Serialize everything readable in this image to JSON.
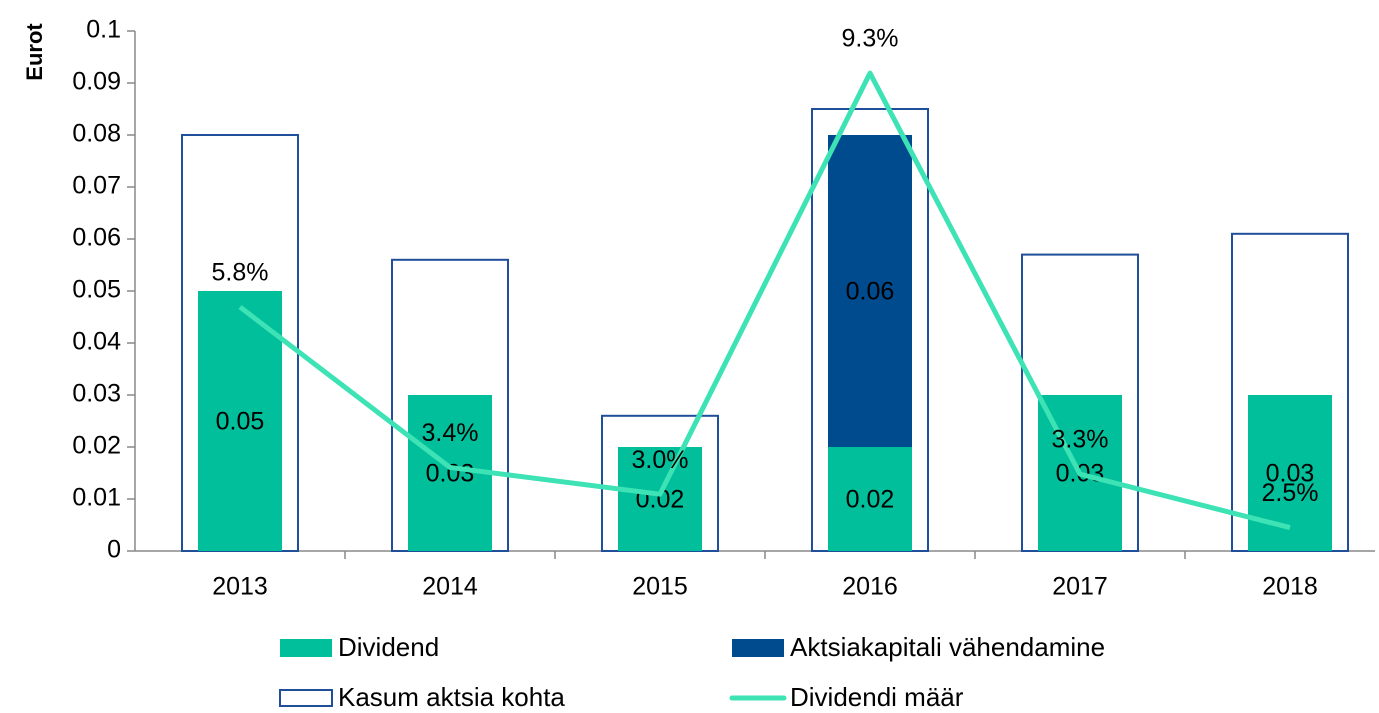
{
  "chart_data": {
    "type": "bar",
    "y_axis_label": "Eurot",
    "categories": [
      "2013",
      "2014",
      "2015",
      "2016",
      "2017",
      "2018"
    ],
    "series": [
      {
        "name": "Kasum aktsia kohta",
        "kind": "outline",
        "color": "#1f4e9a",
        "values": [
          0.08,
          0.056,
          0.026,
          0.085,
          0.057,
          0.061
        ]
      },
      {
        "name": "Dividend",
        "kind": "stacked",
        "color": "#00bf9a",
        "label_color": "#ffffff",
        "values": [
          0.05,
          0.03,
          0.02,
          0.02,
          0.03,
          0.03
        ]
      },
      {
        "name": "Aktsiakapitali vähendamine",
        "kind": "stacked",
        "color": "#004b8d",
        "label_color": "#000000",
        "values": [
          null,
          null,
          null,
          0.06,
          null,
          null
        ]
      },
      {
        "name": "Dividendi määr",
        "kind": "line",
        "axis": "y2",
        "color": "#3de2b5",
        "values": [
          5.8,
          3.4,
          3.0,
          9.3,
          3.3,
          2.5
        ],
        "value_labels": [
          "5.8%",
          "3.4%",
          "3.0%",
          "9.3%",
          "3.3%",
          "2.5%"
        ]
      }
    ],
    "legend_order": [
      1,
      2,
      0,
      3
    ],
    "ylim": [
      0,
      0.1
    ],
    "yticks": [
      0,
      0.01,
      0.02,
      0.03,
      0.04,
      0.05,
      0.06,
      0.07,
      0.08,
      0.09,
      0.1
    ],
    "y2lim": [
      2.15,
      9.93
    ],
    "grid": false
  }
}
